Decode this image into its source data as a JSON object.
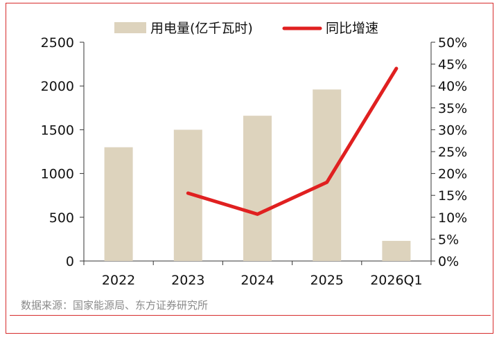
{
  "chart_data": {
    "type": "bar",
    "categories": [
      "2022",
      "2023",
      "2024",
      "2025",
      "2026Q1"
    ],
    "series": [
      {
        "name": "用电量(亿千瓦时)",
        "type": "bar",
        "axis": "left",
        "color": "#ddd3bd",
        "values": [
          1300,
          1500,
          1660,
          1960,
          230
        ]
      },
      {
        "name": "同比增速",
        "type": "line",
        "axis": "right",
        "color": "#e02020",
        "values": [
          null,
          0.155,
          0.107,
          0.18,
          0.44
        ]
      }
    ],
    "y_left": {
      "min": 0,
      "max": 2500,
      "ticks": [
        0,
        500,
        1000,
        1500,
        2000,
        2500
      ],
      "tick_labels": [
        "0",
        "500",
        "1000",
        "1500",
        "2000",
        "2500"
      ]
    },
    "y_right": {
      "min": 0,
      "max": 0.5,
      "ticks": [
        0,
        0.05,
        0.1,
        0.15,
        0.2,
        0.25,
        0.3,
        0.35,
        0.4,
        0.45,
        0.5
      ],
      "tick_labels": [
        "0%",
        "5%",
        "10%",
        "15%",
        "20%",
        "25%",
        "30%",
        "35%",
        "40%",
        "45%",
        "50%"
      ]
    },
    "legend": "top-center",
    "grid": false
  },
  "source": "数据来源：国家能源局、东方证券研究所"
}
